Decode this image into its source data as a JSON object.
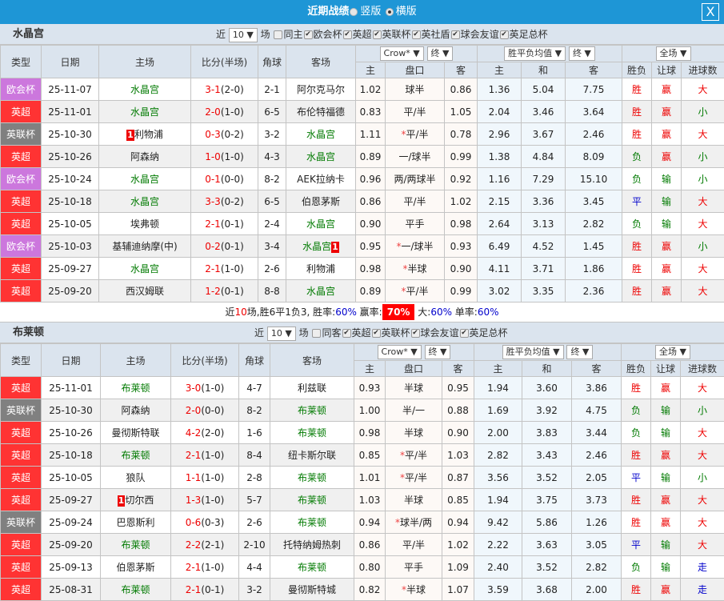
{
  "title": {
    "label": "近期战绩",
    "opt1": "竖版",
    "opt2": "横版",
    "close": "X"
  },
  "colors": {
    "欧会杯": "#cc77dd",
    "英超": "#ff3333",
    "英联杯": "#808080"
  },
  "headers": {
    "type": "类型",
    "date": "日期",
    "home": "主场",
    "score": "比分(半场)",
    "corner": "角球",
    "away": "客场",
    "company": "Crow*",
    "stage1": "终",
    "avg": "胜平负均值",
    "stage2": "终",
    "period": "全场",
    "h": "主",
    "line": "盘口",
    "a": "客",
    "w": "主",
    "d": "和",
    "l": "客",
    "res": "胜负",
    "hc": "让球",
    "ou": "进球数"
  },
  "sections": [
    {
      "team": "水晶宫",
      "near": "近",
      "count": "10",
      "unit": "场",
      "filters": [
        {
          "label": "同主",
          "checked": false
        },
        {
          "label": "欧会杯",
          "checked": true
        },
        {
          "label": "英超",
          "checked": true
        },
        {
          "label": "英联杯",
          "checked": true
        },
        {
          "label": "英社盾",
          "checked": true
        },
        {
          "label": "球会友谊",
          "checked": true
        },
        {
          "label": "英足总杯",
          "checked": true
        }
      ],
      "rows": [
        [
          "欧会杯",
          "25-11-07",
          "水晶宫",
          "",
          "3-1",
          "(2-0)",
          "2-1",
          "阿尔克马尔",
          "",
          "1.02",
          "",
          "球半",
          "0.86",
          "1.36",
          "5.04",
          "7.75",
          "胜",
          "赢",
          "大"
        ],
        [
          "英超",
          "25-11-01",
          "水晶宫",
          "",
          "2-0",
          "(1-0)",
          "6-5",
          "布伦特福德",
          "",
          "0.83",
          "",
          "平/半",
          "1.05",
          "2.04",
          "3.46",
          "3.64",
          "胜",
          "赢",
          "小"
        ],
        [
          "英联杯",
          "25-10-30",
          "利物浦",
          "1",
          "0-3",
          "(0-2)",
          "3-2",
          "水晶宫",
          "",
          "1.11",
          "*",
          "平/半",
          "0.78",
          "2.96",
          "3.67",
          "2.46",
          "胜",
          "赢",
          "大"
        ],
        [
          "英超",
          "25-10-26",
          "阿森纳",
          "",
          "1-0",
          "(1-0)",
          "4-3",
          "水晶宫",
          "",
          "0.89",
          "",
          "一/球半",
          "0.99",
          "1.38",
          "4.84",
          "8.09",
          "负",
          "赢",
          "小"
        ],
        [
          "欧会杯",
          "25-10-24",
          "水晶宫",
          "",
          "0-1",
          "(0-0)",
          "8-2",
          "AEK拉纳卡",
          "",
          "0.96",
          "",
          "两/两球半",
          "0.92",
          "1.16",
          "7.29",
          "15.10",
          "负",
          "输",
          "小"
        ],
        [
          "英超",
          "25-10-18",
          "水晶宫",
          "",
          "3-3",
          "(0-2)",
          "6-5",
          "伯恩茅斯",
          "",
          "0.86",
          "",
          "平/半",
          "1.02",
          "2.15",
          "3.36",
          "3.45",
          "平",
          "输",
          "大"
        ],
        [
          "英超",
          "25-10-05",
          "埃弗顿",
          "",
          "2-1",
          "(0-1)",
          "2-4",
          "水晶宫",
          "",
          "0.90",
          "",
          "平手",
          "0.98",
          "2.64",
          "3.13",
          "2.82",
          "负",
          "输",
          "大"
        ],
        [
          "欧会杯",
          "25-10-03",
          "基辅迪纳摩(中)",
          "",
          "0-2",
          "(0-1)",
          "3-4",
          "水晶宫",
          "1",
          "0.95",
          "*",
          "一/球半",
          "0.93",
          "6.49",
          "4.52",
          "1.45",
          "胜",
          "赢",
          "小"
        ],
        [
          "英超",
          "25-09-27",
          "水晶宫",
          "",
          "2-1",
          "(1-0)",
          "2-6",
          "利物浦",
          "",
          "0.98",
          "*",
          "半球",
          "0.90",
          "4.11",
          "3.71",
          "1.86",
          "胜",
          "赢",
          "大"
        ],
        [
          "英超",
          "25-09-20",
          "西汉姆联",
          "",
          "1-2",
          "(0-1)",
          "8-8",
          "水晶宫",
          "",
          "0.89",
          "*",
          "平/半",
          "0.99",
          "3.02",
          "3.35",
          "2.36",
          "胜",
          "赢",
          "大"
        ]
      ],
      "summary": {
        "p1": "近",
        "n": "10",
        "p2": "场,胜6平1负3, 胜率:",
        "win": "60%",
        "p3": " 赢率:",
        "hc": "70%",
        "p4": " 大:",
        "big": "60%",
        "p5": " 单率:",
        "odd": "60%"
      }
    },
    {
      "team": "布莱顿",
      "near": "近",
      "count": "10",
      "unit": "场",
      "filters": [
        {
          "label": "同客",
          "checked": false
        },
        {
          "label": "英超",
          "checked": true
        },
        {
          "label": "英联杯",
          "checked": true
        },
        {
          "label": "球会友谊",
          "checked": true
        },
        {
          "label": "英足总杯",
          "checked": true
        }
      ],
      "rows": [
        [
          "英超",
          "25-11-01",
          "布莱顿",
          "",
          "3-0",
          "(1-0)",
          "4-7",
          "利兹联",
          "",
          "0.93",
          "",
          "半球",
          "0.95",
          "1.94",
          "3.60",
          "3.86",
          "胜",
          "赢",
          "大"
        ],
        [
          "英联杯",
          "25-10-30",
          "阿森纳",
          "",
          "2-0",
          "(0-0)",
          "8-2",
          "布莱顿",
          "",
          "1.00",
          "",
          "半/一",
          "0.88",
          "1.69",
          "3.92",
          "4.75",
          "负",
          "输",
          "小"
        ],
        [
          "英超",
          "25-10-26",
          "曼彻斯特联",
          "",
          "4-2",
          "(2-0)",
          "1-6",
          "布莱顿",
          "",
          "0.98",
          "",
          "半球",
          "0.90",
          "2.00",
          "3.83",
          "3.44",
          "负",
          "输",
          "大"
        ],
        [
          "英超",
          "25-10-18",
          "布莱顿",
          "",
          "2-1",
          "(1-0)",
          "8-4",
          "纽卡斯尔联",
          "",
          "0.85",
          "*",
          "平/半",
          "1.03",
          "2.82",
          "3.43",
          "2.46",
          "胜",
          "赢",
          "大"
        ],
        [
          "英超",
          "25-10-05",
          "狼队",
          "",
          "1-1",
          "(1-0)",
          "2-8",
          "布莱顿",
          "",
          "1.01",
          "*",
          "平/半",
          "0.87",
          "3.56",
          "3.52",
          "2.05",
          "平",
          "输",
          "小"
        ],
        [
          "英超",
          "25-09-27",
          "切尔西",
          "1",
          "1-3",
          "(1-0)",
          "5-7",
          "布莱顿",
          "",
          "1.03",
          "",
          "半球",
          "0.85",
          "1.94",
          "3.75",
          "3.73",
          "胜",
          "赢",
          "大"
        ],
        [
          "英联杯",
          "25-09-24",
          "巴恩斯利",
          "",
          "0-6",
          "(0-3)",
          "2-6",
          "布莱顿",
          "",
          "0.94",
          "*",
          "球半/两",
          "0.94",
          "9.42",
          "5.86",
          "1.26",
          "胜",
          "赢",
          "大"
        ],
        [
          "英超",
          "25-09-20",
          "布莱顿",
          "",
          "2-2",
          "(2-1)",
          "2-10",
          "托特纳姆热刺",
          "",
          "0.86",
          "",
          "平/半",
          "1.02",
          "2.22",
          "3.63",
          "3.05",
          "平",
          "输",
          "大"
        ],
        [
          "英超",
          "25-09-13",
          "伯恩茅斯",
          "",
          "2-1",
          "(1-0)",
          "4-4",
          "布莱顿",
          "",
          "0.80",
          "",
          "平手",
          "1.09",
          "2.40",
          "3.52",
          "2.82",
          "负",
          "输",
          "走"
        ],
        [
          "英超",
          "25-08-31",
          "布莱顿",
          "",
          "2-1",
          "(0-1)",
          "3-2",
          "曼彻斯特城",
          "",
          "0.82",
          "*",
          "半球",
          "1.07",
          "3.59",
          "3.68",
          "2.00",
          "胜",
          "赢",
          "走"
        ]
      ]
    }
  ]
}
